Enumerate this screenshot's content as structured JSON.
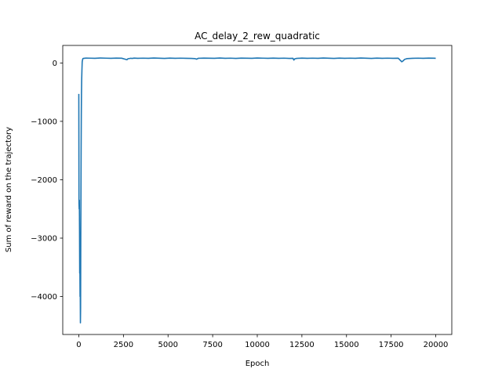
{
  "chart_data": {
    "type": "line",
    "title": "AC_delay_2_rew_quadratic",
    "xlabel": "Epoch",
    "ylabel": "Sum of reward on the trajectory",
    "xlim": [
      -900,
      20900
    ],
    "ylim": [
      -4650,
      300
    ],
    "xticks": [
      0,
      2500,
      5000,
      7500,
      10000,
      12500,
      15000,
      17500,
      20000
    ],
    "xtick_labels": [
      "0",
      "2500",
      "5000",
      "7500",
      "10000",
      "12500",
      "15000",
      "17500",
      "20000"
    ],
    "yticks": [
      0,
      -1000,
      -2000,
      -3000,
      -4000
    ],
    "ytick_labels": [
      "0",
      "−1000",
      "−2000",
      "−3000",
      "−4000"
    ],
    "grid": false,
    "legend": "none",
    "series": [
      {
        "color": "#1f77b4",
        "x": [
          0,
          10,
          20,
          30,
          40,
          50,
          60,
          70,
          80,
          90,
          100,
          110,
          120,
          130,
          140,
          150,
          160,
          175,
          190,
          210,
          230,
          260,
          300,
          400,
          600,
          900,
          1200,
          1500,
          1800,
          2100,
          2400,
          2700,
          2750,
          2800,
          2900,
          3000,
          3100,
          3300,
          3600,
          3900,
          4200,
          4500,
          4800,
          5100,
          5400,
          5700,
          6000,
          6300,
          6500,
          6600,
          6700,
          7000,
          7300,
          7600,
          7900,
          8200,
          8500,
          8800,
          9100,
          9400,
          9700,
          10000,
          10300,
          10600,
          10900,
          11200,
          11500,
          11800,
          12000,
          12050,
          12100,
          12200,
          12500,
          12800,
          13100,
          13400,
          13700,
          14000,
          14300,
          14600,
          14900,
          15200,
          15500,
          15800,
          16100,
          16400,
          16700,
          17000,
          17300,
          17600,
          17900,
          18000,
          18100,
          18150,
          18250,
          18400,
          18700,
          19000,
          19300,
          19600,
          19900,
          20000
        ],
        "y": [
          -530,
          -2400,
          -2500,
          -2350,
          -2850,
          -3600,
          -3450,
          -4000,
          -3900,
          -4450,
          -4200,
          -3000,
          -2300,
          -1500,
          -900,
          -520,
          -300,
          -120,
          20,
          55,
          75,
          78,
          80,
          83,
          82,
          80,
          84,
          82,
          79,
          83,
          81,
          55,
          72,
          74,
          80,
          78,
          83,
          79,
          82,
          80,
          84,
          81,
          78,
          83,
          79,
          82,
          80,
          78,
          75,
          65,
          80,
          83,
          81,
          79,
          84,
          80,
          82,
          78,
          83,
          81,
          80,
          84,
          82,
          79,
          83,
          80,
          82,
          78,
          80,
          50,
          70,
          78,
          83,
          80,
          82,
          79,
          84,
          81,
          78,
          83,
          80,
          82,
          79,
          84,
          81,
          78,
          83,
          80,
          82,
          79,
          81,
          50,
          20,
          30,
          60,
          75,
          80,
          82,
          79,
          83,
          81,
          80
        ]
      }
    ]
  }
}
